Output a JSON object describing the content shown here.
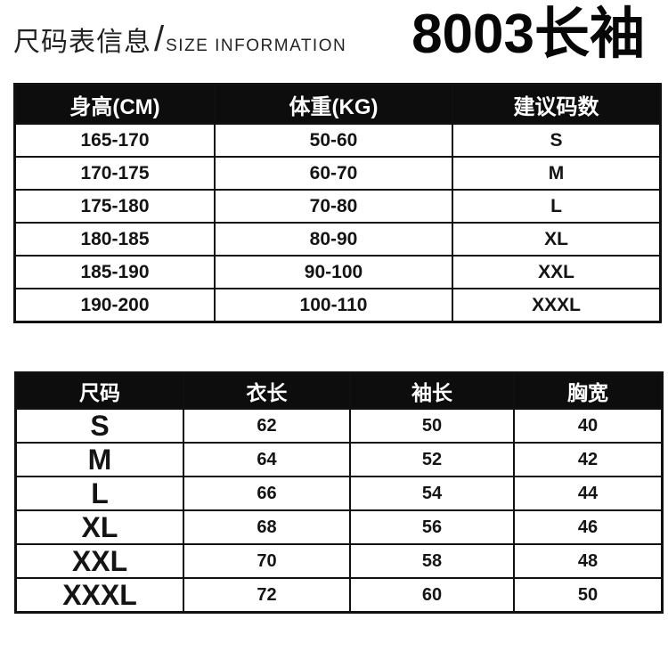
{
  "header": {
    "title_cn": "尺码表信息",
    "title_separator": "/",
    "title_en": "SIZE INFORMATION",
    "product_title": "8003长袖"
  },
  "size_recommendation_table": {
    "headers": [
      "身高(CM)",
      "体重(KG)",
      "建议码数"
    ],
    "rows": [
      [
        "165-170",
        "50-60",
        "S"
      ],
      [
        "170-175",
        "60-70",
        "M"
      ],
      [
        "175-180",
        "70-80",
        "L"
      ],
      [
        "180-185",
        "80-90",
        "XL"
      ],
      [
        "185-190",
        "90-100",
        "XXL"
      ],
      [
        "190-200",
        "100-110",
        "XXXL"
      ]
    ]
  },
  "measurement_table": {
    "headers": [
      "尺码",
      "衣长",
      "袖长",
      "胸宽"
    ],
    "rows": [
      [
        "S",
        "62",
        "50",
        "40"
      ],
      [
        "M",
        "64",
        "52",
        "42"
      ],
      [
        "L",
        "66",
        "54",
        "44"
      ],
      [
        "XL",
        "68",
        "56",
        "46"
      ],
      [
        "XXL",
        "70",
        "58",
        "48"
      ],
      [
        "XXXL",
        "72",
        "60",
        "50"
      ]
    ]
  },
  "colors": {
    "table_header_bg": "#0d0d0d",
    "table_header_text": "#ffffff",
    "body_text": "#141414",
    "border": "#101010",
    "page_bg": "#ffffff"
  }
}
